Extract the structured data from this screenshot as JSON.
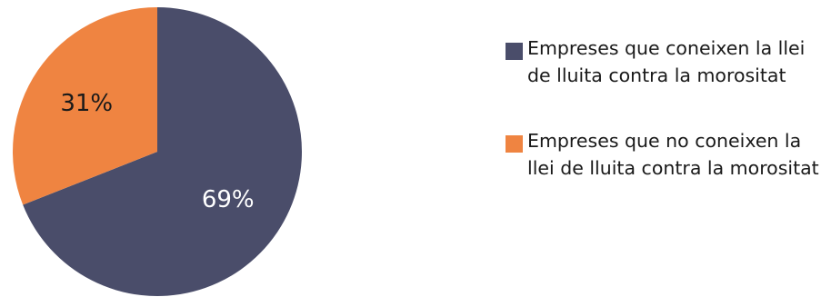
{
  "chart_data": {
    "type": "pie",
    "title": "",
    "slices": [
      {
        "label": "Empreses que coneixen la llei de lluita contra la morositat",
        "value": 69,
        "value_label": "69%",
        "color": "#4a4d6a",
        "label_color": "#ffffff"
      },
      {
        "label": "Empreses que no coneixen la llei de lluita contra la morositat",
        "value": 31,
        "value_label": "31%",
        "color": "#ef8441",
        "label_color": "#1a1a1a"
      }
    ],
    "start_angle_deg": 0,
    "direction": "clockwise",
    "legend_position": "right"
  }
}
